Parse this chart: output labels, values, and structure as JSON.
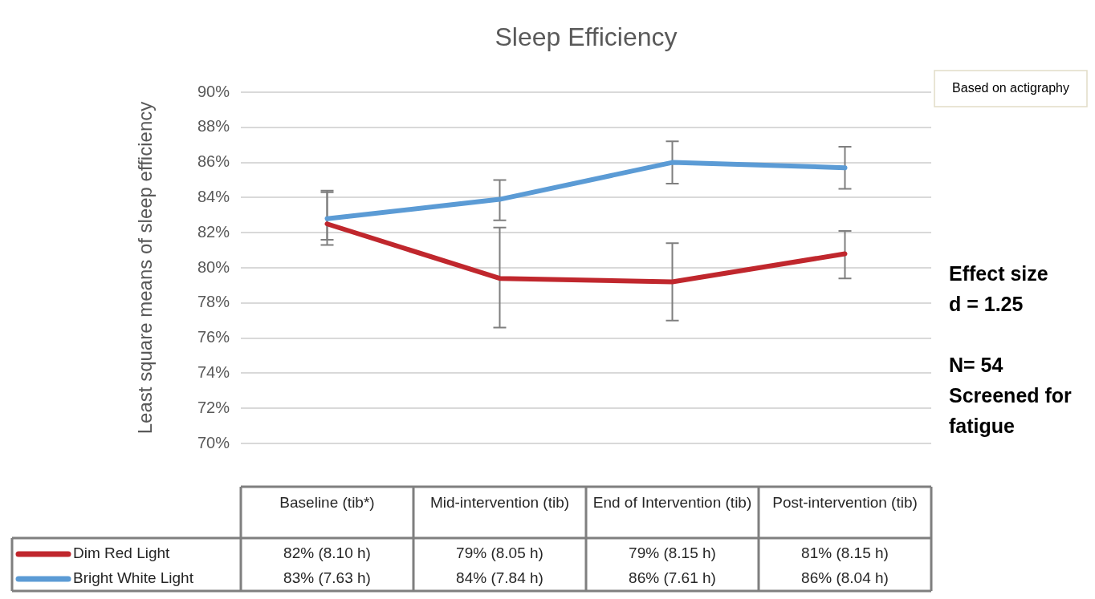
{
  "chart_data": {
    "type": "line",
    "title": "Sleep Efficiency",
    "ylabel": "Least square means of sleep efficiency",
    "categories": [
      "Baseline (tib*)",
      "Mid-intervention (tib)",
      "End of Intervention (tib)",
      "Post-intervention (tib)"
    ],
    "series": [
      {
        "name": "Dim Red Light",
        "color": "#c0272d",
        "values": [
          82.5,
          79.4,
          79.2,
          80.8
        ],
        "errors": [
          [
            81.3,
            84.3
          ],
          [
            76.6,
            82.3
          ],
          [
            77.0,
            81.4
          ],
          [
            79.4,
            82.1
          ]
        ],
        "value_labels": [
          "82% (8.10 h)",
          "79% (8.05 h)",
          "79% (8.15 h)",
          "81% (8.15 h)"
        ]
      },
      {
        "name": "Bright White Light",
        "color": "#5b9bd5",
        "values": [
          82.8,
          83.9,
          86.0,
          85.7
        ],
        "errors": [
          [
            81.6,
            84.4
          ],
          [
            82.7,
            85.0
          ],
          [
            84.8,
            87.2
          ],
          [
            84.5,
            86.9
          ]
        ],
        "value_labels": [
          "83% (7.63 h)",
          "84% (7.84 h)",
          "86% (7.61 h)",
          "86% (8.04 h)"
        ]
      }
    ],
    "ylim": [
      70,
      90
    ],
    "yticks": [
      {
        "value": 70,
        "label": "70%"
      },
      {
        "value": 72,
        "label": "72%"
      },
      {
        "value": 74,
        "label": "74%"
      },
      {
        "value": 76,
        "label": "76%"
      },
      {
        "value": 78,
        "label": "78%"
      },
      {
        "value": 80,
        "label": "80%"
      },
      {
        "value": 82,
        "label": "82%"
      },
      {
        "value": 84,
        "label": "84%"
      },
      {
        "value": 86,
        "label": "86%"
      },
      {
        "value": 88,
        "label": "88%"
      },
      {
        "value": 90,
        "label": "90%"
      }
    ],
    "grid": "y",
    "legend": "bottom",
    "marker": "none",
    "line_style": "solid",
    "annotations": [
      "Based on actigraphy",
      "Effect size\nd = 1.25",
      "N= 54\nScreened for fatigue"
    ]
  }
}
